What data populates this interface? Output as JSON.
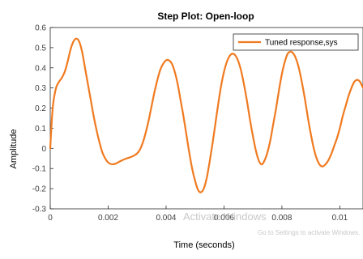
{
  "chart_data": {
    "type": "line",
    "title": "Step Plot: Open-loop",
    "xlabel": "Time (seconds)",
    "ylabel": "Amplitude",
    "xlim": [
      0,
      0.0108
    ],
    "ylim": [
      -0.3,
      0.6
    ],
    "xticks": [
      0,
      0.002,
      0.004,
      0.006,
      0.008,
      0.01
    ],
    "xtick_labels": [
      "0",
      "0.002",
      "0.004",
      "0.006",
      "0.008",
      "0.01"
    ],
    "yticks": [
      -0.3,
      -0.2,
      -0.1,
      0,
      0.1,
      0.2,
      0.3,
      0.4,
      0.5,
      0.6
    ],
    "ytick_labels": [
      "-0.3",
      "-0.2",
      "-0.1",
      "0",
      "0.1",
      "0.2",
      "0.3",
      "0.4",
      "0.5",
      "0.6"
    ],
    "grid": false,
    "legend": {
      "position": "top-right",
      "entries": [
        "Tuned response,sys"
      ]
    },
    "colors": {
      "series": "#f07a20",
      "axes": "#262626",
      "background": "#ffffff"
    },
    "series": [
      {
        "name": "Tuned response,sys",
        "x": [
          0,
          5e-05,
          0.0001,
          0.0002,
          0.0003,
          0.0004,
          0.0005,
          0.0006,
          0.0007,
          0.0008,
          0.0009,
          0.001,
          0.0011,
          0.0012,
          0.0013,
          0.0014,
          0.0015,
          0.0016,
          0.0017,
          0.0018,
          0.0019,
          0.002,
          0.0021,
          0.0022,
          0.0023,
          0.0024,
          0.0025,
          0.0026,
          0.0027,
          0.0028,
          0.0029,
          0.003,
          0.0031,
          0.0032,
          0.0033,
          0.0034,
          0.0035,
          0.0036,
          0.0037,
          0.0038,
          0.0039,
          0.004,
          0.0041,
          0.0042,
          0.0043,
          0.0044,
          0.0045,
          0.0046,
          0.0047,
          0.0048,
          0.0049,
          0.005,
          0.0051,
          0.0052,
          0.0053,
          0.0054,
          0.0055,
          0.0056,
          0.0057,
          0.0058,
          0.0059,
          0.006,
          0.0061,
          0.0062,
          0.0063,
          0.0064,
          0.0065,
          0.0066,
          0.0067,
          0.0068,
          0.0069,
          0.007,
          0.0071,
          0.0072,
          0.0073,
          0.0074,
          0.0075,
          0.0076,
          0.0077,
          0.0078,
          0.0079,
          0.008,
          0.0081,
          0.0082,
          0.0083,
          0.0084,
          0.0085,
          0.0086,
          0.0087,
          0.0088,
          0.0089,
          0.009,
          0.0091,
          0.0092,
          0.0093,
          0.0094,
          0.0095,
          0.0096,
          0.0097,
          0.0098,
          0.0099,
          0.01,
          0.0101,
          0.0102,
          0.0103,
          0.0104,
          0.0105,
          0.0106,
          0.0107,
          0.0108
        ],
        "y": [
          0,
          0.13,
          0.22,
          0.3,
          0.33,
          0.35,
          0.38,
          0.43,
          0.49,
          0.53,
          0.545,
          0.53,
          0.48,
          0.4,
          0.32,
          0.24,
          0.16,
          0.09,
          0.03,
          -0.02,
          -0.05,
          -0.07,
          -0.078,
          -0.078,
          -0.073,
          -0.065,
          -0.058,
          -0.052,
          -0.047,
          -0.042,
          -0.035,
          -0.025,
          -0.005,
          0.03,
          0.08,
          0.14,
          0.21,
          0.28,
          0.34,
          0.39,
          0.42,
          0.437,
          0.437,
          0.42,
          0.38,
          0.32,
          0.24,
          0.16,
          0.07,
          -0.02,
          -0.1,
          -0.16,
          -0.205,
          -0.218,
          -0.2,
          -0.15,
          -0.07,
          0.02,
          0.12,
          0.22,
          0.31,
          0.38,
          0.43,
          0.46,
          0.47,
          0.46,
          0.43,
          0.38,
          0.31,
          0.23,
          0.14,
          0.06,
          -0.01,
          -0.06,
          -0.08,
          -0.06,
          -0.02,
          0.04,
          0.12,
          0.2,
          0.29,
          0.37,
          0.43,
          0.47,
          0.48,
          0.47,
          0.44,
          0.39,
          0.32,
          0.24,
          0.15,
          0.07,
          0.0,
          -0.05,
          -0.08,
          -0.09,
          -0.08,
          -0.06,
          -0.03,
          0.01,
          0.05,
          0.1,
          0.16,
          0.21,
          0.26,
          0.3,
          0.33,
          0.34,
          0.33,
          0.3
        ]
      }
    ]
  },
  "watermark": {
    "line1": "Activate Windows",
    "line2": "Go to Settings to activate Windows."
  }
}
